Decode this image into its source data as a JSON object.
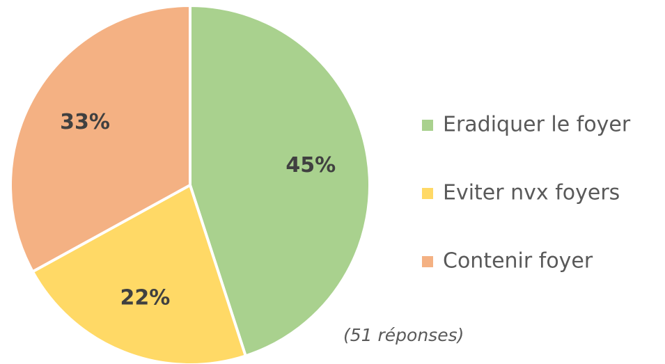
{
  "chart_data": {
    "type": "pie",
    "categories": [
      "Eradiquer le foyer",
      "Eviter nvx foyers",
      "Contenir foyer"
    ],
    "values": [
      45,
      22,
      33
    ],
    "value_labels": [
      "45%",
      "22%",
      "33%"
    ],
    "colors": [
      "#a9d18e",
      "#ffd966",
      "#f4b183"
    ],
    "annotation": "(51 réponses)"
  }
}
